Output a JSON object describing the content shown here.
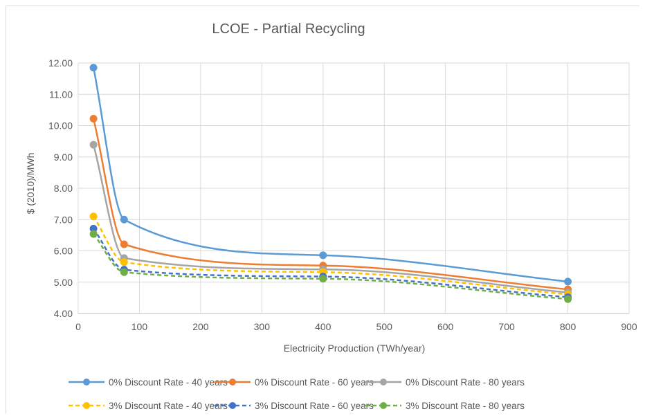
{
  "chart_data": {
    "type": "line",
    "title": "LCOE - Partial Recycling",
    "xlabel": "Electricity Production (TWh/year)",
    "ylabel": "$ (2010)/MWh",
    "xlim": [
      0,
      900
    ],
    "ylim": [
      4.0,
      12.0
    ],
    "x_ticks": [
      0,
      100,
      200,
      300,
      400,
      500,
      600,
      700,
      800,
      900
    ],
    "x_tick_labels": [
      "0",
      "100",
      "200",
      "300",
      "400",
      "500",
      "600",
      "700",
      "800",
      "900"
    ],
    "y_ticks": [
      4,
      5,
      6,
      7,
      8,
      9,
      10,
      11,
      12
    ],
    "y_tick_labels": [
      "4.00",
      "5.00",
      "6.00",
      "7.00",
      "8.00",
      "9.00",
      "10.00",
      "11.00",
      "12.00"
    ],
    "grid": true,
    "smooth": true,
    "legend_position": "bottom",
    "x": [
      25,
      75,
      400,
      800
    ],
    "series": [
      {
        "name": "0% Discount Rate - 40 years",
        "values": [
          11.85,
          7.0,
          5.86,
          5.02
        ],
        "color": "#5b9bd5",
        "dash": "solid"
      },
      {
        "name": "0% Discount Rate - 60 years",
        "values": [
          10.22,
          6.21,
          5.53,
          4.77
        ],
        "color": "#ed7d31",
        "dash": "solid"
      },
      {
        "name": "0% Discount Rate - 80 years",
        "values": [
          9.39,
          5.77,
          5.41,
          4.67
        ],
        "color": "#a5a5a5",
        "dash": "solid"
      },
      {
        "name": "3% Discount Rate - 40 years",
        "values": [
          7.1,
          5.64,
          5.32,
          4.61
        ],
        "color": "#ffc000",
        "dash": "dashed"
      },
      {
        "name": "3% Discount Rate - 60 years",
        "values": [
          6.71,
          5.4,
          5.18,
          4.52
        ],
        "color": "#4472c4",
        "dash": "dashed"
      },
      {
        "name": "3% Discount Rate - 80 years",
        "values": [
          6.54,
          5.32,
          5.11,
          4.46
        ],
        "color": "#70ad47",
        "dash": "dashed"
      }
    ]
  }
}
